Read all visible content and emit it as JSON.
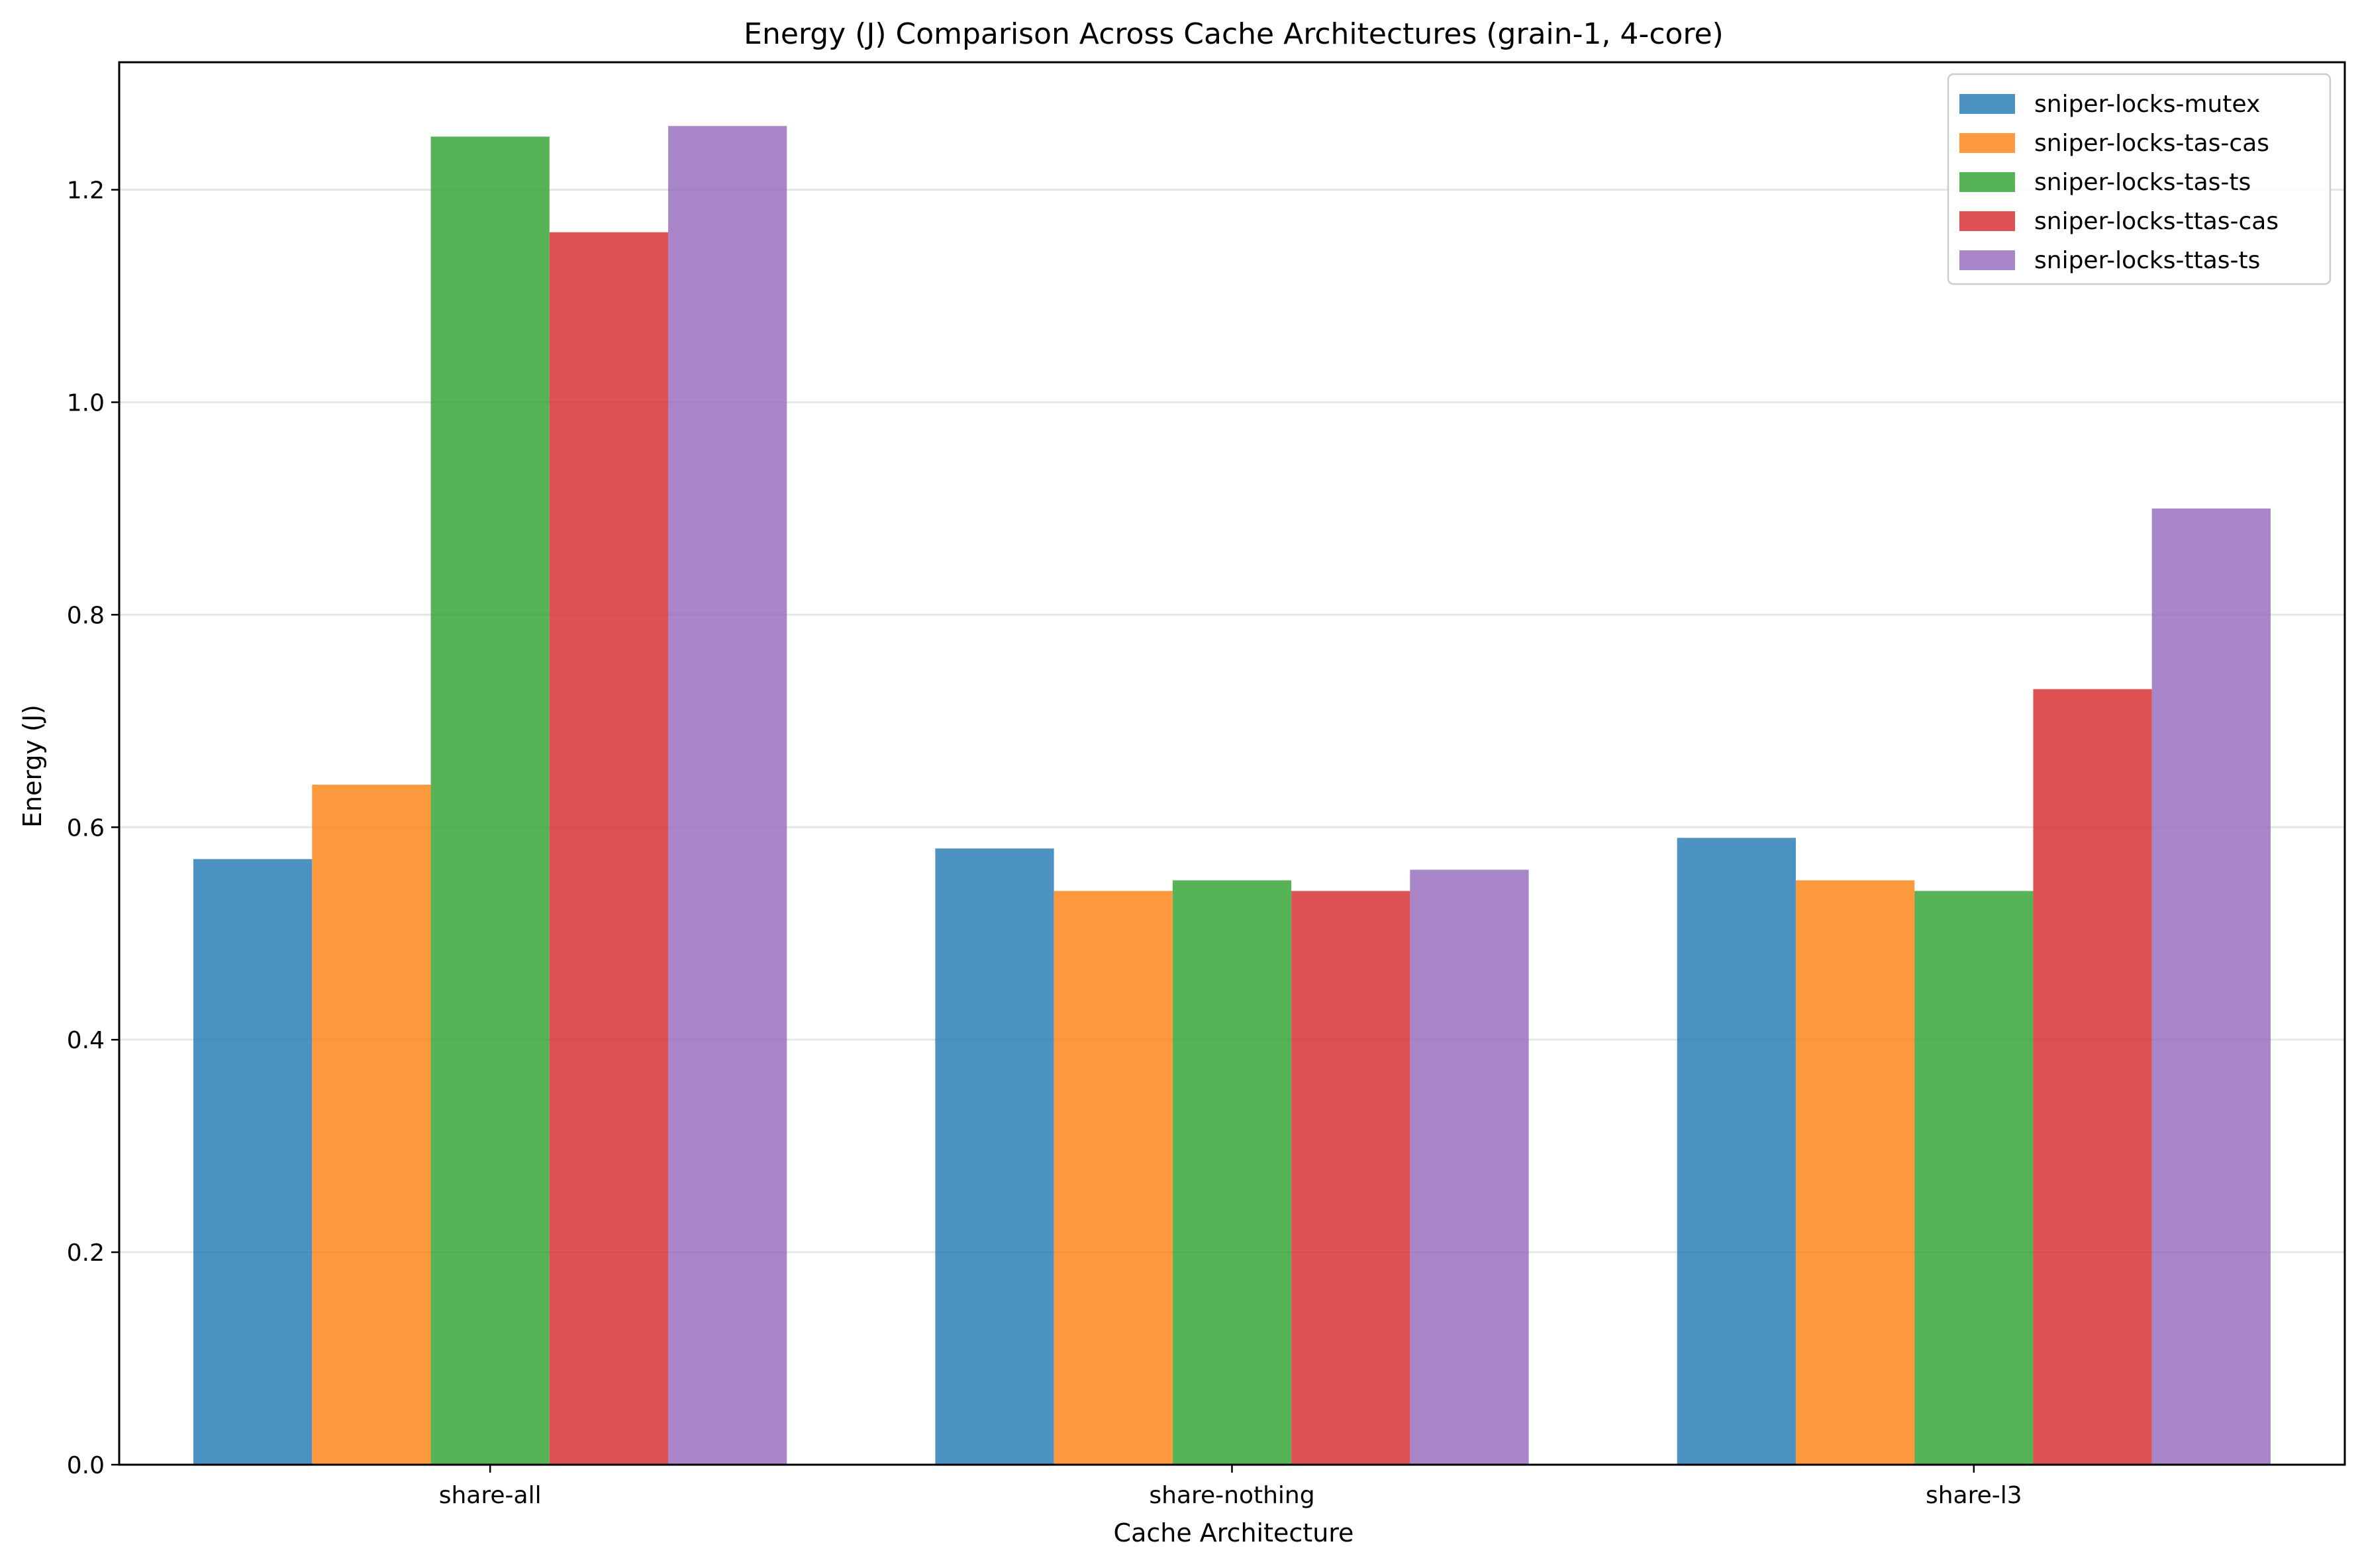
{
  "chart_data": {
    "type": "bar",
    "title": "Energy (J) Comparison Across Cache Architectures (grain-1, 4-core)",
    "xlabel": "Cache Architecture",
    "ylabel": "Energy (J)",
    "categories": [
      "share-all",
      "share-nothing",
      "share-l3"
    ],
    "ylim": [
      0,
      1.32
    ],
    "yticks": [
      "0.0",
      "0.2",
      "0.4",
      "0.6",
      "0.8",
      "1.0",
      "1.2"
    ],
    "grid": "y-axis horizontal lines",
    "legend_position": "top-right",
    "series": [
      {
        "name": "sniper-locks-mutex",
        "color": "#1f77b4",
        "values": [
          0.57,
          0.58,
          0.59
        ]
      },
      {
        "name": "sniper-locks-tas-cas",
        "color": "#ff7f0e",
        "values": [
          0.64,
          0.54,
          0.55
        ]
      },
      {
        "name": "sniper-locks-tas-ts",
        "color": "#2ca02c",
        "values": [
          1.25,
          0.55,
          0.54
        ]
      },
      {
        "name": "sniper-locks-ttas-cas",
        "color": "#d62728",
        "values": [
          1.16,
          0.54,
          0.73
        ]
      },
      {
        "name": "sniper-locks-ttas-ts",
        "color": "#9467bd",
        "values": [
          1.26,
          0.56,
          0.9
        ]
      }
    ]
  }
}
